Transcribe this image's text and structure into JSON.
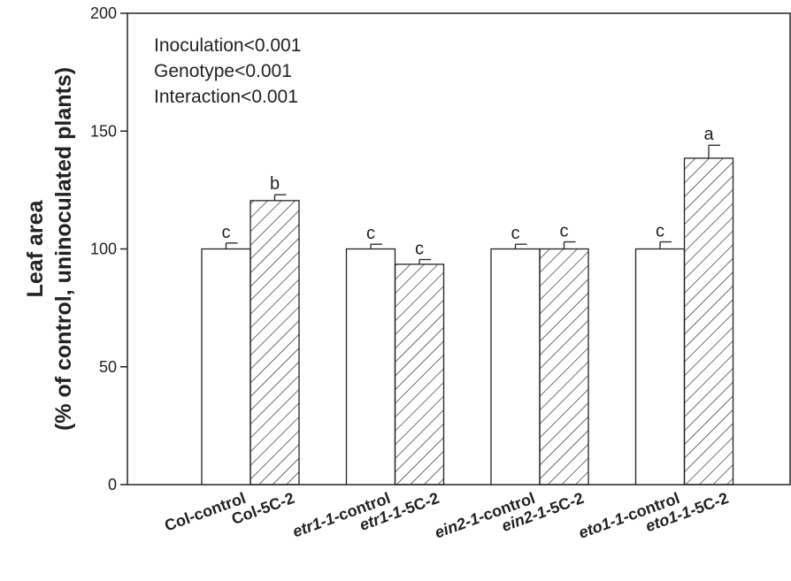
{
  "chart_data": {
    "type": "bar",
    "ylabel_lines": [
      "Leaf area",
      "(% of control, uninoculated plants)"
    ],
    "ylim": [
      0,
      200
    ],
    "yticks": [
      0,
      50,
      100,
      150,
      200
    ],
    "annotations": [
      "Inoculation<0.001",
      "Genotype<0.001",
      "Interaction<0.001"
    ],
    "bars": [
      {
        "label_parts": [
          {
            "t": "Col",
            "i": false
          },
          {
            "t": "-control",
            "i": false
          }
        ],
        "value": 100,
        "error": 2.5,
        "sig": "c",
        "pattern": "open"
      },
      {
        "label_parts": [
          {
            "t": "Col",
            "i": false
          },
          {
            "t": "-5C-2",
            "i": false
          }
        ],
        "value": 120.5,
        "error": 2.5,
        "sig": "b",
        "pattern": "hatched"
      },
      {
        "label_parts": [
          {
            "t": "etr1-1",
            "i": true
          },
          {
            "t": "-control",
            "i": false
          }
        ],
        "value": 100,
        "error": 2,
        "sig": "c",
        "pattern": "open"
      },
      {
        "label_parts": [
          {
            "t": "etr1-1",
            "i": true
          },
          {
            "t": "-5C-2",
            "i": false
          }
        ],
        "value": 93.5,
        "error": 2,
        "sig": "c",
        "pattern": "hatched"
      },
      {
        "label_parts": [
          {
            "t": "ein2-1",
            "i": true
          },
          {
            "t": "-control",
            "i": false
          }
        ],
        "value": 100,
        "error": 2,
        "sig": "c",
        "pattern": "open"
      },
      {
        "label_parts": [
          {
            "t": "ein2-1",
            "i": true
          },
          {
            "t": "-5C-2",
            "i": false
          }
        ],
        "value": 100,
        "error": 3,
        "sig": "c",
        "pattern": "hatched"
      },
      {
        "label_parts": [
          {
            "t": "eto1-1",
            "i": true
          },
          {
            "t": "-control",
            "i": false
          }
        ],
        "value": 100,
        "error": 3,
        "sig": "c",
        "pattern": "open"
      },
      {
        "label_parts": [
          {
            "t": "eto1-1",
            "i": true
          },
          {
            "t": "-5C-2",
            "i": false
          }
        ],
        "value": 138.5,
        "error": 5.5,
        "sig": "a",
        "pattern": "hatched"
      }
    ],
    "colors": {
      "axis": "#222222",
      "bar_fill": "#ffffff",
      "hatch": "#222222"
    }
  }
}
